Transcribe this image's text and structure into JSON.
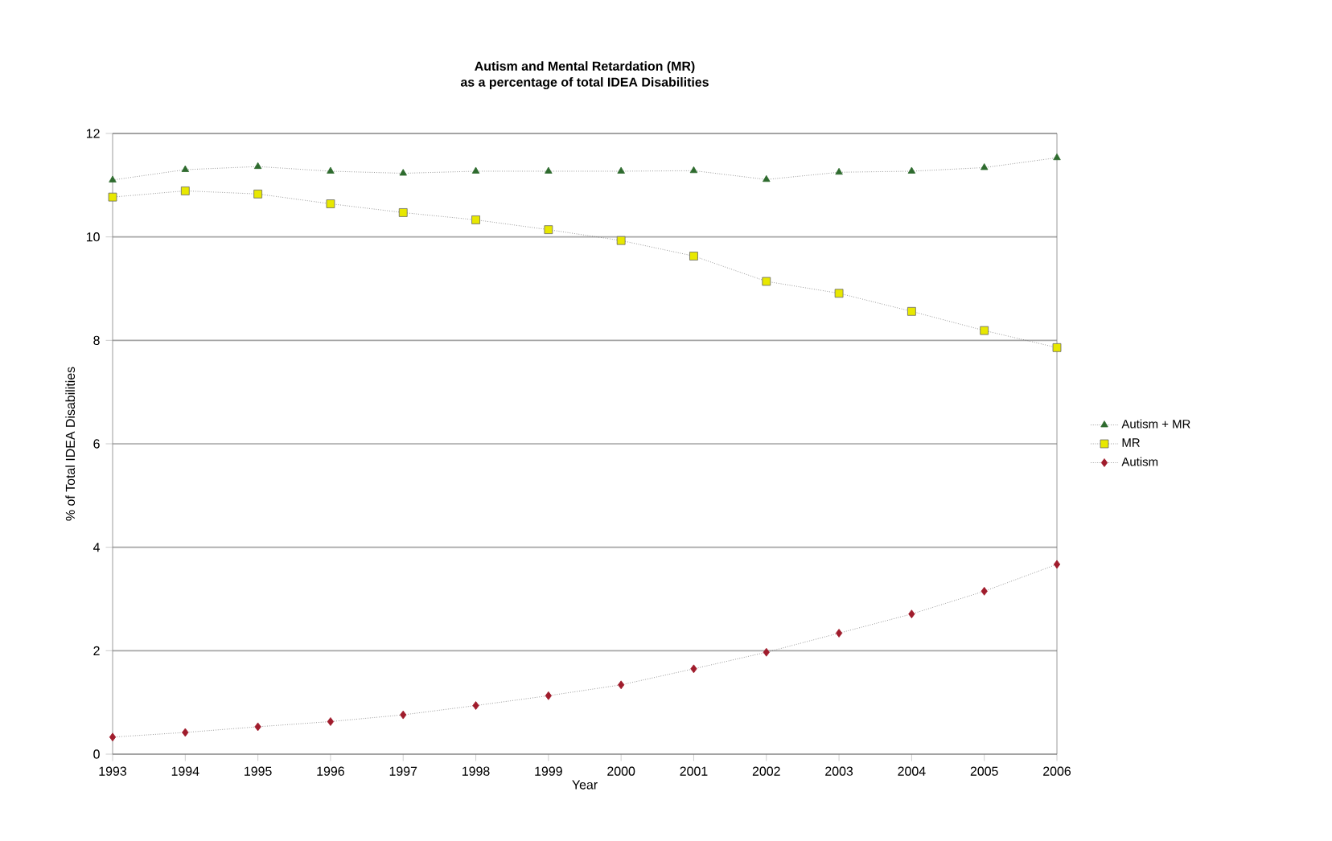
{
  "chart_data": {
    "type": "line",
    "title": "Autism and Mental Retardation (MR)\nas a percentage of total IDEA Disabilities",
    "xlabel": "Year",
    "ylabel": "% of Total IDEA Disabilities",
    "x": [
      1993,
      1994,
      1995,
      1996,
      1997,
      1998,
      1999,
      2000,
      2001,
      2002,
      2003,
      2004,
      2005,
      2006
    ],
    "series": [
      {
        "name": "Autism + MR",
        "color": "#2e6b2e",
        "marker": "triangle",
        "values": [
          11.1,
          11.3,
          11.36,
          11.27,
          11.23,
          11.27,
          11.27,
          11.27,
          11.28,
          11.11,
          11.25,
          11.27,
          11.34,
          11.53
        ]
      },
      {
        "name": "MR",
        "color": "#e8e800",
        "marker": "square",
        "values": [
          10.77,
          10.89,
          10.83,
          10.64,
          10.47,
          10.33,
          10.14,
          9.93,
          9.63,
          9.14,
          8.91,
          8.56,
          8.19,
          7.86
        ]
      },
      {
        "name": "Autism",
        "color": "#a01c2c",
        "marker": "diamond",
        "values": [
          0.33,
          0.42,
          0.53,
          0.63,
          0.76,
          0.94,
          1.13,
          1.34,
          1.65,
          1.97,
          2.34,
          2.71,
          3.15,
          3.67
        ]
      }
    ],
    "xlim": [
      1993,
      2006
    ],
    "xticks": [
      1993,
      1994,
      1995,
      1996,
      1997,
      1998,
      1999,
      2000,
      2001,
      2002,
      2003,
      2004,
      2005,
      2006
    ],
    "ylim": [
      0,
      12
    ],
    "yticks": [
      0,
      2,
      4,
      6,
      8,
      10,
      12
    ],
    "grid": "y",
    "legend": "right",
    "line_style": "dotted"
  }
}
